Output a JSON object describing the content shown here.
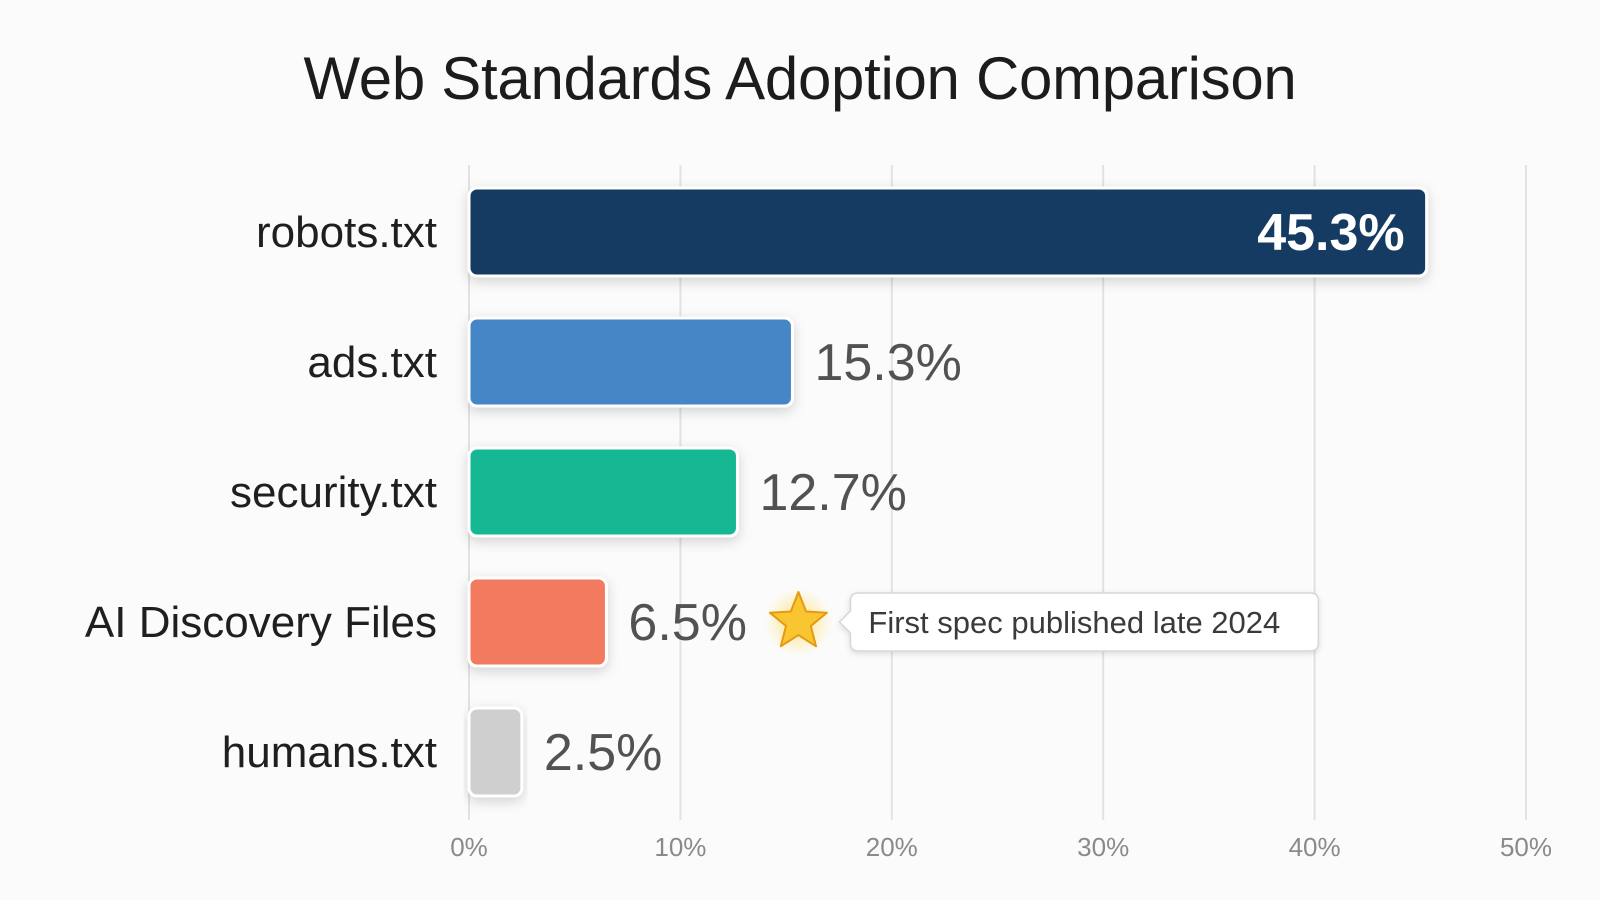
{
  "chart_data": {
    "type": "bar",
    "orientation": "horizontal",
    "title": "Web Standards Adoption Comparison",
    "categories": [
      "robots.txt",
      "ads.txt",
      "security.txt",
      "AI Discovery Files",
      "humans.txt"
    ],
    "values": [
      45.3,
      15.3,
      12.7,
      6.5,
      2.5
    ],
    "value_labels": [
      "45.3%",
      "15.3%",
      "12.7%",
      "6.5%",
      "2.5%"
    ],
    "colors": [
      "#163a62",
      "#4586c6",
      "#19b893",
      "#f27a5e",
      "#cfcfcf"
    ],
    "xlim": [
      0,
      50
    ],
    "x_ticks": [
      0,
      10,
      20,
      30,
      40,
      50
    ],
    "x_tick_labels": [
      "0%",
      "10%",
      "20%",
      "30%",
      "40%",
      "50%"
    ],
    "grid": true,
    "annotation": {
      "category": "AI Discovery Files",
      "icon": "star-icon",
      "text": "First spec published late 2024"
    }
  }
}
